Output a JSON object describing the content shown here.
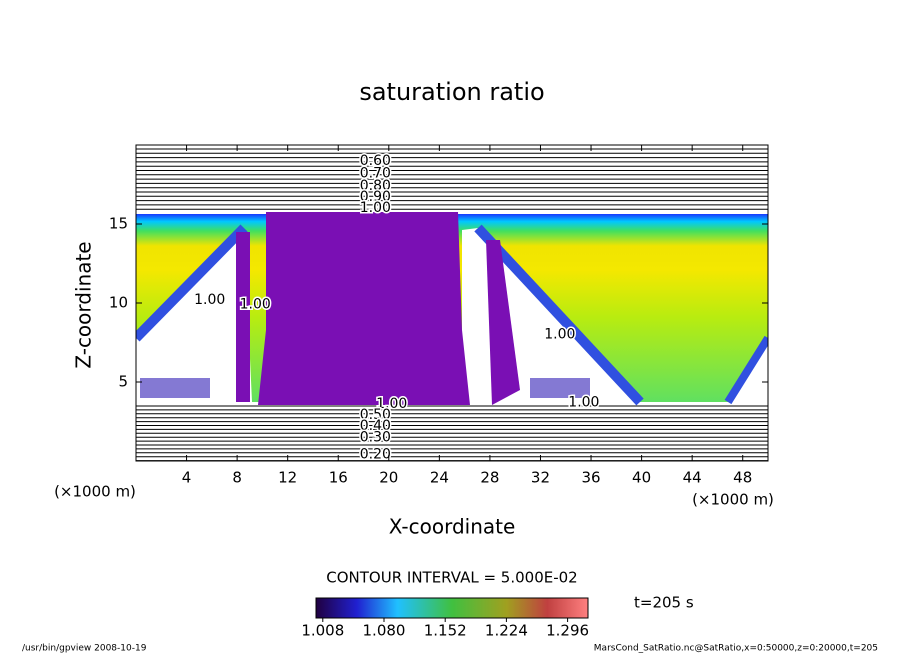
{
  "chart_data": {
    "type": "contour",
    "title": "saturation ratio",
    "x_label": "X-coordinate",
    "y_label": "Z-coordinate",
    "x_unit_label": "(×1000 m)",
    "y_unit_label": "(×1000 m)",
    "xlim": [
      0,
      50
    ],
    "ylim": [
      0,
      20
    ],
    "xticks": [
      4,
      8,
      12,
      16,
      20,
      24,
      28,
      32,
      36,
      40,
      44,
      48
    ],
    "yticks": [
      5,
      10,
      15
    ],
    "contour_labels": [
      {
        "label": "0.60",
        "x": 17.7,
        "z": 19.0
      },
      {
        "label": "0.70",
        "x": 17.7,
        "z": 18.2
      },
      {
        "label": "0.80",
        "x": 17.7,
        "z": 17.4
      },
      {
        "label": "0.90",
        "x": 17.7,
        "z": 16.7
      },
      {
        "label": "1.00",
        "x": 17.7,
        "z": 16.0
      },
      {
        "label": "1.00",
        "x": 19.0,
        "z": 3.6
      },
      {
        "label": "0.50",
        "x": 17.7,
        "z": 2.9
      },
      {
        "label": "0.40",
        "x": 17.7,
        "z": 2.2
      },
      {
        "label": "0.30",
        "x": 17.7,
        "z": 1.5
      },
      {
        "label": "0.20",
        "x": 17.7,
        "z": 0.4
      },
      {
        "label": "1.00",
        "x": 4.6,
        "z": 10.2
      },
      {
        "label": "1.00",
        "x": 8.2,
        "z": 9.9
      },
      {
        "label": "1.00",
        "x": 32.3,
        "z": 8.0
      },
      {
        "label": "1.00",
        "x": 34.2,
        "z": 3.7
      }
    ],
    "contour_interval_label": "CONTOUR INTERVAL = 5.000E-02",
    "colorbar": {
      "clim": [
        1.0,
        1.32
      ],
      "ticks": [
        1.008,
        1.08,
        1.152,
        1.224,
        1.296
      ],
      "tick_labels": [
        "1.008",
        "1.080",
        "1.152",
        "1.224",
        "1.296"
      ]
    },
    "time_label": "t=205 s",
    "footer_left": "/usr/bin/gpview  2008-10-19",
    "footer_right": "MarsCond_SatRatio.nc@SatRatio,x=0:50000,z=0:20000,t=205"
  }
}
